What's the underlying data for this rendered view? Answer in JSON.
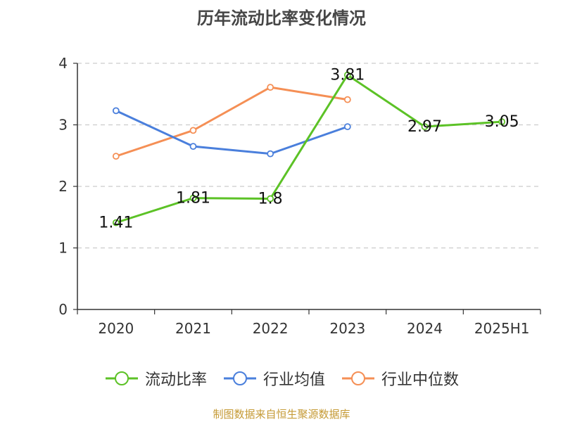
{
  "chart_data": {
    "type": "line",
    "title": "历年流动比率变化情况",
    "categories": [
      "2020",
      "2021",
      "2022",
      "2023",
      "2024",
      "2025H1"
    ],
    "ylim": [
      0,
      4
    ],
    "yticks": [
      "0",
      "1",
      "2",
      "3",
      "4"
    ],
    "grid": true,
    "legend_position": "bottom",
    "series": [
      {
        "name": "流动比率",
        "color": "#5cc226",
        "values": [
          1.41,
          1.81,
          1.8,
          3.81,
          2.97,
          3.05
        ],
        "labels": [
          "1.41",
          "1.81",
          "1.8",
          "3.81",
          "2.97",
          "3.05"
        ]
      },
      {
        "name": "行业均值",
        "color": "#4a7fdc",
        "values": [
          3.23,
          2.65,
          2.53,
          2.97,
          null,
          null
        ]
      },
      {
        "name": "行业中位数",
        "color": "#f58f55",
        "values": [
          2.49,
          2.91,
          3.61,
          3.41,
          null,
          null
        ]
      }
    ]
  },
  "source_note": "制图数据来自恒生聚源数据库"
}
